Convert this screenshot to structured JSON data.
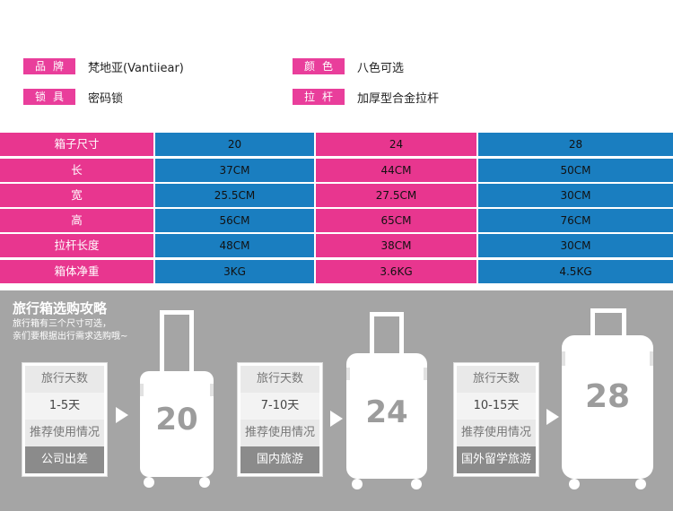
{
  "attributes": [
    {
      "label": "品牌",
      "value": "梵地亚(Vantiiear)"
    },
    {
      "label": "颜色",
      "value": "八色可选"
    },
    {
      "label": "锁具",
      "value": "密码锁"
    },
    {
      "label": "拉杆",
      "value": "加厚型合金拉杆"
    }
  ],
  "size_table": {
    "header": {
      "label": "箱子尺寸",
      "values": [
        "20",
        "24",
        "28"
      ]
    },
    "rows": [
      {
        "label": "长",
        "values": [
          "37CM",
          "44CM",
          "50CM"
        ]
      },
      {
        "label": "宽",
        "values": [
          "25.5CM",
          "27.5CM",
          "30CM"
        ]
      },
      {
        "label": "高",
        "values": [
          "56CM",
          "65CM",
          "76CM"
        ]
      },
      {
        "label": "拉杆长度",
        "values": [
          "48CM",
          "38CM",
          "30CM"
        ]
      },
      {
        "label": "箱体净重",
        "values": [
          "3KG",
          "3.6KG",
          "4.5KG"
        ]
      }
    ]
  },
  "guide": {
    "title": "旅行箱选购攻略",
    "subtitle_lines": [
      "旅行箱有三个尺寸可选，",
      "亲们要根据出行需求选购哦~"
    ],
    "options": [
      {
        "days_label": "旅行天数",
        "days": "1-5天",
        "use_label": "推荐使用情况",
        "use": "公司出差",
        "size": "20"
      },
      {
        "days_label": "旅行天数",
        "days": "7-10天",
        "use_label": "推荐使用情况",
        "use": "国内旅游",
        "size": "24"
      },
      {
        "days_label": "旅行天数",
        "days": "10-15天",
        "use_label": "推荐使用情况",
        "use": "国外留学旅游",
        "size": "28"
      }
    ]
  },
  "colors": {
    "pink": "#e8368f",
    "blue": "#1a7ec0",
    "gray_bg": "#a5a5a5"
  }
}
